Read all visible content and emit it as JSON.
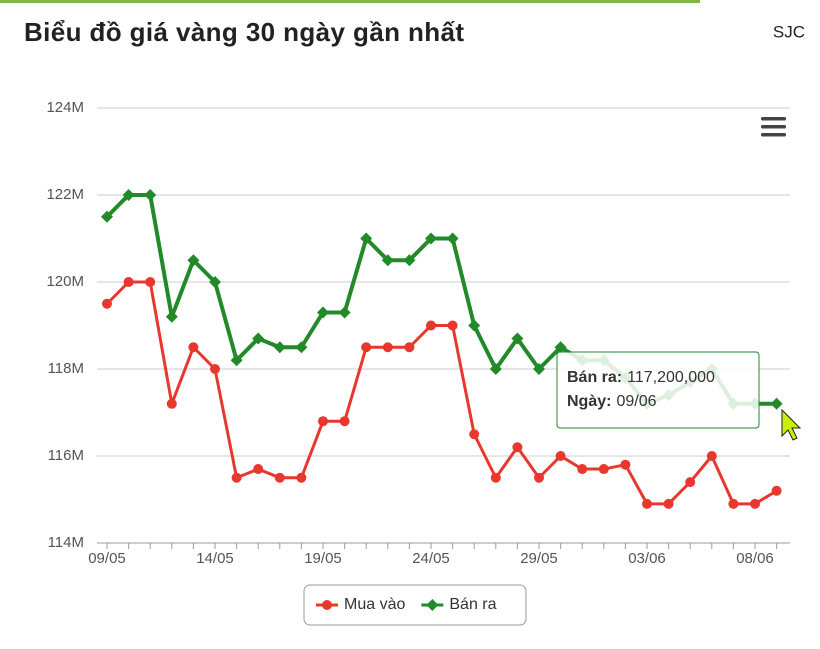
{
  "header": {
    "title": "Biểu đồ giá vàng 30 ngày gần nhất",
    "source": "SJC"
  },
  "chart_data": {
    "type": "line",
    "categories": [
      "09/05",
      null,
      null,
      null,
      null,
      "14/05",
      null,
      null,
      null,
      null,
      "19/05",
      null,
      null,
      null,
      null,
      "24/05",
      null,
      null,
      null,
      null,
      "29/05",
      null,
      null,
      null,
      null,
      "03/06",
      null,
      null,
      null,
      null,
      "08/06",
      null
    ],
    "series": [
      {
        "name": "Mua vào",
        "color": "#e8382e",
        "marker": "circle",
        "values": [
          119500000,
          120000000,
          120000000,
          117200000,
          118500000,
          118000000,
          115500000,
          115700000,
          115500000,
          115500000,
          116800000,
          116800000,
          118500000,
          118500000,
          118500000,
          119000000,
          119000000,
          116500000,
          115500000,
          116200000,
          115500000,
          116000000,
          115700000,
          115700000,
          115800000,
          114900000,
          114900000,
          115400000,
          116000000,
          114900000,
          114900000,
          115200000
        ]
      },
      {
        "name": "Bán ra",
        "color": "#238a2a",
        "marker": "diamond",
        "values": [
          121500000,
          122000000,
          122000000,
          119200000,
          120500000,
          120000000,
          118200000,
          118700000,
          118500000,
          118500000,
          119300000,
          119300000,
          121000000,
          120500000,
          120500000,
          121000000,
          121000000,
          119000000,
          118000000,
          118700000,
          118000000,
          118500000,
          118200000,
          118200000,
          117800000,
          117200000,
          117400000,
          117700000,
          118000000,
          117200000,
          117200000,
          117200000
        ]
      }
    ],
    "ylim": [
      114000000,
      124000000
    ],
    "yticks": [
      {
        "value": 114000000,
        "label": "114M"
      },
      {
        "value": 116000000,
        "label": "116M"
      },
      {
        "value": 118000000,
        "label": "118M"
      },
      {
        "value": 120000000,
        "label": "120M"
      },
      {
        "value": 122000000,
        "label": "122M"
      },
      {
        "value": 124000000,
        "label": "124M"
      }
    ],
    "grid": true,
    "legend": "bottom",
    "tooltip": {
      "lines": [
        {
          "label": "Bán ra:",
          "value": "117,200,000"
        },
        {
          "label": "Ngày:",
          "value": "09/06"
        }
      ]
    }
  }
}
